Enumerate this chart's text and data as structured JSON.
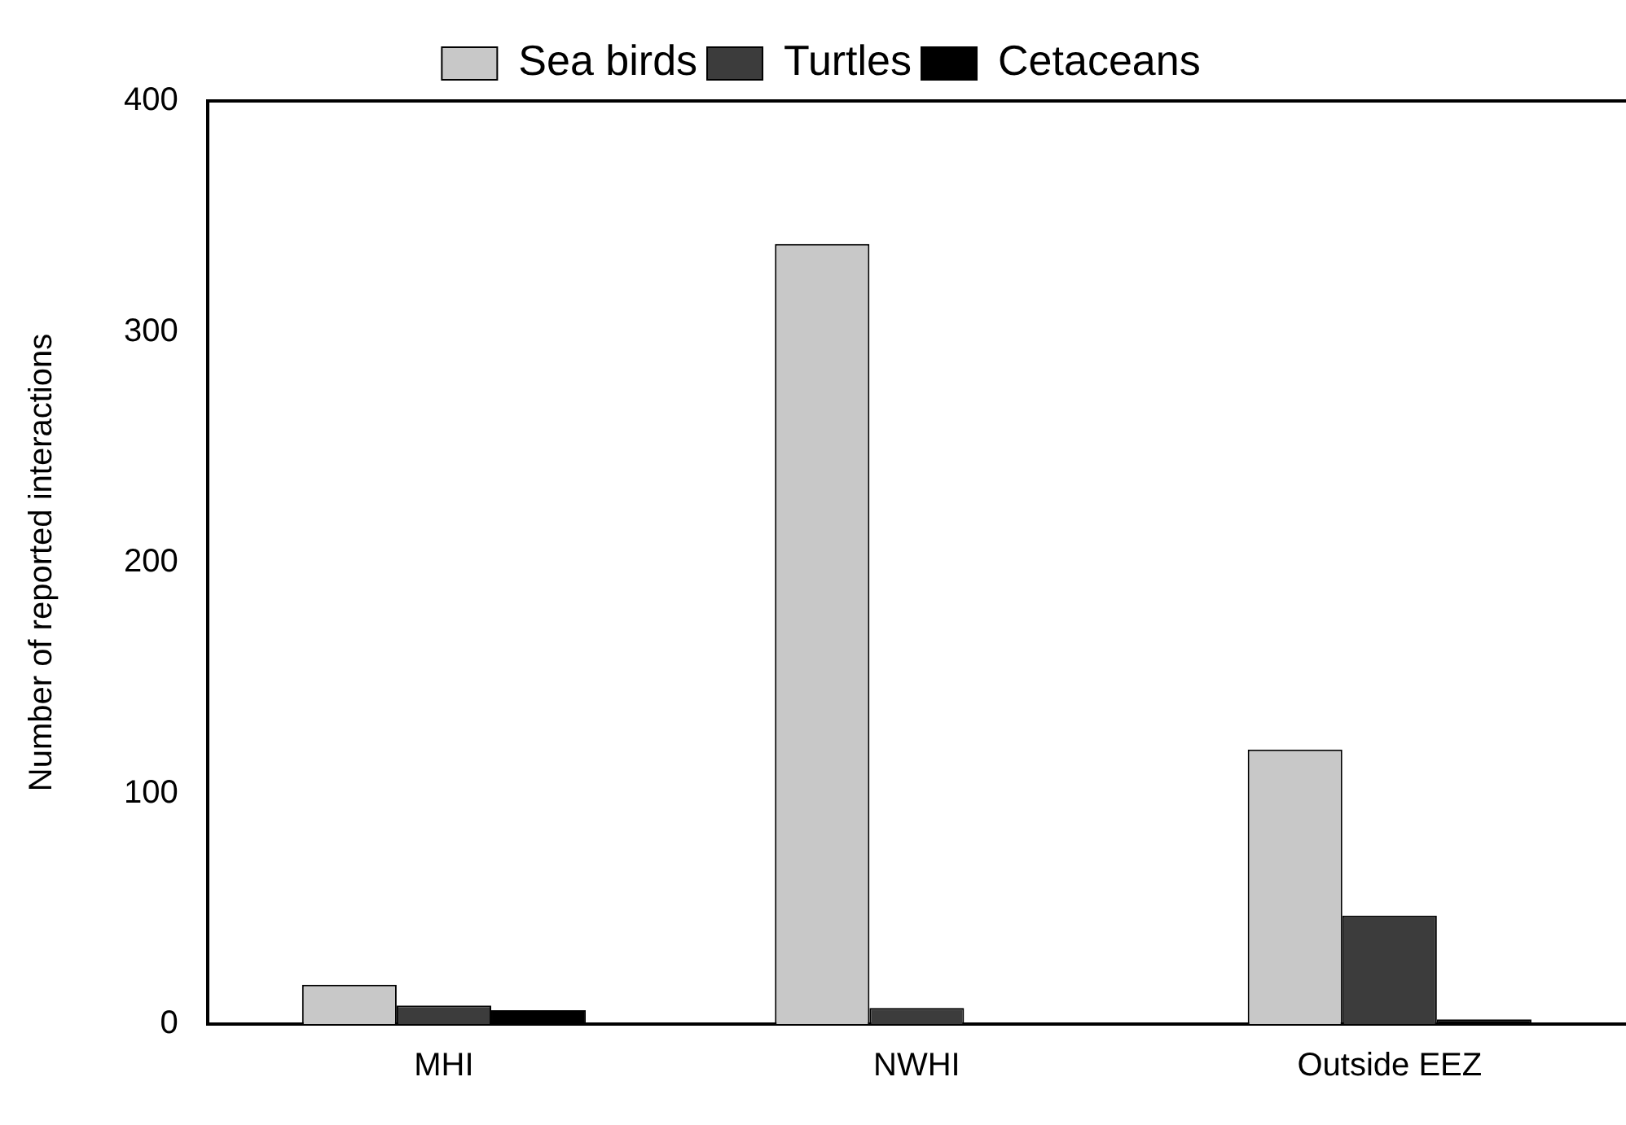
{
  "chart_data": {
    "type": "bar",
    "ylabel": "Number of reported interactions",
    "categories": [
      "MHI",
      "NWHI",
      "Outside EEZ"
    ],
    "series": [
      {
        "name": "Sea birds",
        "color": "#c8c8c8",
        "values": [
          17,
          338,
          119
        ]
      },
      {
        "name": "Turtles",
        "color": "#3c3c3c",
        "values": [
          8,
          7,
          47
        ]
      },
      {
        "name": "Cetaceans",
        "color": "#000000",
        "values": [
          6,
          0,
          2
        ]
      }
    ],
    "ylim": [
      0,
      400
    ],
    "yticks": [
      0,
      100,
      200,
      300,
      400
    ],
    "grid": false,
    "legend": "top"
  }
}
